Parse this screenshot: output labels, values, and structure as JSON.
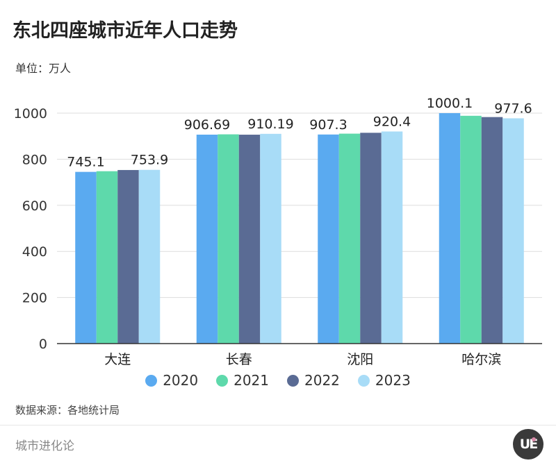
{
  "title": "东北四座城市近年人口走势",
  "unit": "单位：万人",
  "source": "数据来源：各地统计局",
  "brand": "城市进化论",
  "logo_text": "UE",
  "colors": {
    "2020": "#5aaaf0",
    "2021": "#5ed9ab",
    "2022": "#5a6b94",
    "2023": "#a8dcf7",
    "grid": "#dddddd",
    "axis": "#333333"
  },
  "chart_data": {
    "type": "bar",
    "categories": [
      "大连",
      "长春",
      "沈阳",
      "哈尔滨"
    ],
    "series": [
      {
        "name": "2020",
        "values": [
          745.1,
          906.69,
          907.3,
          1000.1
        ]
      },
      {
        "name": "2021",
        "values": [
          748,
          908,
          911,
          988.5
        ]
      },
      {
        "name": "2022",
        "values": [
          753.2,
          906.5,
          914.7,
          983
        ]
      },
      {
        "name": "2023",
        "values": [
          753.9,
          910.19,
          920.4,
          977.6
        ]
      }
    ],
    "data_labels": [
      {
        "category_index": 0,
        "series_index": 0,
        "text": "745.1"
      },
      {
        "category_index": 0,
        "series_index": 3,
        "text": "753.9"
      },
      {
        "category_index": 1,
        "series_index": 0,
        "text": "906.69"
      },
      {
        "category_index": 1,
        "series_index": 3,
        "text": "910.19"
      },
      {
        "category_index": 2,
        "series_index": 0,
        "text": "907.3"
      },
      {
        "category_index": 2,
        "series_index": 3,
        "text": "920.4"
      },
      {
        "category_index": 3,
        "series_index": 0,
        "text": "1000.1"
      },
      {
        "category_index": 3,
        "series_index": 3,
        "text": "977.6"
      }
    ],
    "ylim": [
      0,
      1000
    ],
    "yticks": [
      0,
      200,
      400,
      600,
      800,
      1000
    ],
    "grid": true,
    "legend_position": "bottom"
  }
}
